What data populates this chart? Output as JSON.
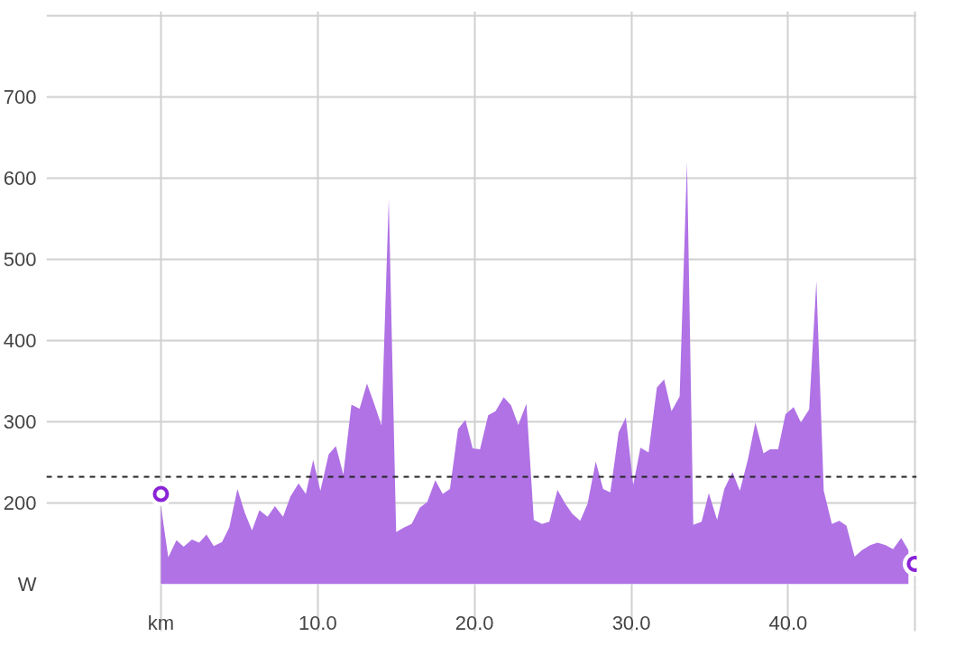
{
  "chart_data": {
    "type": "area",
    "x": [
      0,
      0.47,
      0.99,
      1.45,
      1.98,
      2.44,
      2.91,
      3.37,
      3.9,
      4.36,
      4.88,
      5.35,
      5.81,
      6.28,
      6.8,
      7.27,
      7.79,
      8.26,
      8.78,
      9.24,
      9.71,
      10.17,
      10.7,
      11.16,
      11.63,
      12.15,
      12.67,
      13.14,
      13.6,
      14.07,
      14.53,
      15.0,
      15.52,
      15.99,
      16.51,
      16.98,
      17.5,
      17.97,
      18.43,
      18.95,
      19.42,
      19.88,
      20.35,
      20.87,
      21.34,
      21.86,
      22.33,
      22.79,
      23.31,
      23.78,
      24.3,
      24.77,
      25.29,
      25.76,
      26.22,
      26.74,
      27.21,
      27.73,
      28.2,
      28.66,
      29.19,
      29.65,
      30.12,
      30.58,
      31.1,
      31.63,
      32.09,
      32.56,
      33.08,
      33.55,
      33.95,
      34.48,
      34.94,
      35.47,
      35.93,
      36.45,
      36.92,
      37.44,
      37.91,
      38.43,
      38.84,
      39.36,
      39.83,
      40.35,
      40.81,
      41.34,
      41.8,
      42.27,
      42.79,
      43.26,
      43.72,
      44.24,
      44.71,
      45.23,
      45.7,
      46.22,
      46.69,
      47.21,
      47.67
    ],
    "series": [
      {
        "color": "#b072e5",
        "values": [
          196,
          133,
          154,
          146,
          155,
          151,
          161,
          147,
          152,
          170,
          217,
          188,
          166,
          191,
          183,
          196,
          183,
          208,
          224,
          211,
          253,
          215,
          260,
          270,
          235,
          321,
          316,
          347,
          322,
          295,
          574,
          164,
          170,
          174,
          194,
          201,
          228,
          211,
          217,
          291,
          302,
          267,
          266,
          308,
          313,
          330,
          320,
          296,
          322,
          179,
          174,
          177,
          216,
          200,
          187,
          178,
          199,
          251,
          217,
          213,
          287,
          305,
          222,
          268,
          262,
          342,
          352,
          313,
          331,
          620,
          173,
          177,
          212,
          179,
          217,
          238,
          215,
          254,
          299,
          261,
          266,
          266,
          309,
          318,
          299,
          315,
          473,
          215,
          174,
          178,
          172,
          134,
          142,
          148,
          151,
          148,
          143,
          157,
          142
        ]
      },
      {
        "type": "scatter",
        "color": "#8a22d6",
        "marker": "circle",
        "x": [
          0,
          48.08
        ],
        "values": [
          211,
          125
        ]
      }
    ],
    "xlim": [
      -7.3,
      48.2
    ],
    "ylim": [
      100,
      805
    ],
    "xticks": [
      {
        "value": 0,
        "label": "km"
      },
      {
        "value": 10,
        "label": "10.0"
      },
      {
        "value": 20,
        "label": "20.0"
      },
      {
        "value": 30,
        "label": "30.0"
      },
      {
        "value": 40,
        "label": "40.0"
      },
      {
        "value": 48.08,
        "label": null
      }
    ],
    "yticks": [
      {
        "value": 100,
        "label": "W"
      },
      200,
      300,
      400,
      500,
      600,
      700,
      {
        "value": 800,
        "label": null
      }
    ],
    "grid": true,
    "ref_lines": [
      {
        "axis": "y",
        "value": 232,
        "color": "#222222",
        "line_style": "dashed"
      }
    ]
  }
}
